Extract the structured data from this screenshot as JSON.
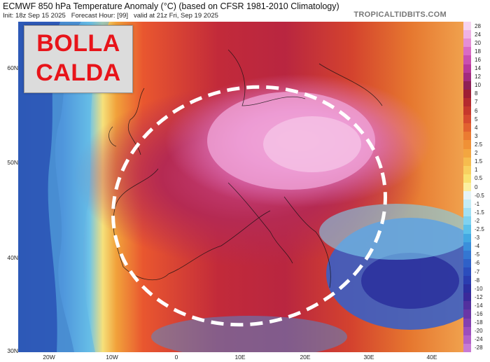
{
  "header": {
    "title": "ECMWF 850 hPa Temperature Anomaly (°C) (based on CFSR 1981-2010 Climatology)",
    "init": "Init: 18z Sep 15 2025",
    "forecast_hour": "Forecast Hour: [99]",
    "valid": "valid at 21z Fri, Sep 19 2025",
    "brand": "TROPICALTIDBITS.COM"
  },
  "overlay": {
    "line1": "BOLLA",
    "line2": "CALDA"
  },
  "latitude_labels": [
    "60N",
    "50N",
    "40N",
    "30N"
  ],
  "longitude_labels": [
    "20W",
    "10W",
    "0",
    "10E",
    "20E",
    "30E",
    "40E"
  ],
  "colorbar": {
    "labels": [
      "28",
      "24",
      "20",
      "18",
      "16",
      "14",
      "12",
      "10",
      "8",
      "7",
      "6",
      "5",
      "4",
      "3",
      "2.5",
      "2",
      "1.5",
      "1",
      "0.5",
      "0",
      "-0.5",
      "-1",
      "-1.5",
      "-2",
      "-2.5",
      "-3",
      "-4",
      "-5",
      "-6",
      "-7",
      "-8",
      "-10",
      "-12",
      "-14",
      "-16",
      "-18",
      "-20",
      "-24",
      "-28"
    ],
    "colors": [
      "#f6d3f0",
      "#efb2e4",
      "#e58ed5",
      "#d96bc4",
      "#c94fb0",
      "#b8389a",
      "#a32a7e",
      "#8e2056",
      "#9e1e34",
      "#b42a2e",
      "#c6382c",
      "#d64a2f",
      "#e2612f",
      "#eb7b31",
      "#f09136",
      "#f3a640",
      "#f6bc4e",
      "#f8d060",
      "#f9e272",
      "#fbf0a0",
      "#e6f4f6",
      "#c4ecf6",
      "#a2e0f4",
      "#7fd2f0",
      "#5cc1ea",
      "#43a8e2",
      "#3a8fdb",
      "#3477d2",
      "#2f61c8",
      "#2b4dbd",
      "#2a3db0",
      "#2c2fa0",
      "#3a2a9a",
      "#52309e",
      "#6a36a6",
      "#8340b0",
      "#9c4ebd",
      "#b261c8",
      "#c77bd4"
    ]
  },
  "annotation": {
    "shape": "dashed-ellipse",
    "color": "#ffffff"
  }
}
